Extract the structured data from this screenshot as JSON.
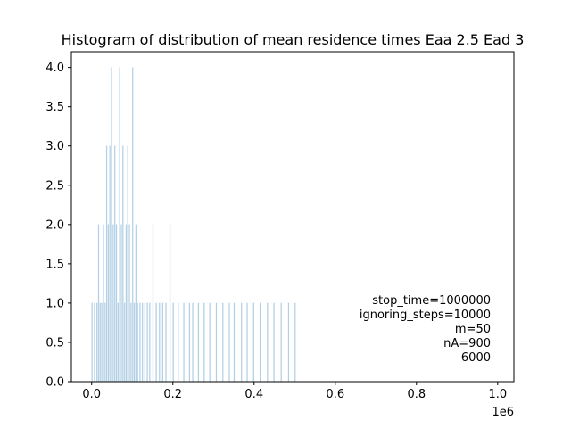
{
  "chart_data": {
    "type": "histogram",
    "title": "Histogram of distribution of mean residence times Eaa 2.5 Ead 3",
    "xlabel": "",
    "ylabel": "",
    "x_offset_label": "1e6",
    "xlim": [
      -50000,
      1040000
    ],
    "ylim": [
      0,
      4.2
    ],
    "x_ticks": [
      0,
      200000,
      400000,
      600000,
      800000,
      1000000
    ],
    "x_tick_labels": [
      "0.0",
      "0.2",
      "0.4",
      "0.6",
      "0.8",
      "1.0"
    ],
    "y_ticks": [
      0,
      0.5,
      1,
      1.5,
      2,
      2.5,
      3,
      3.5,
      4
    ],
    "y_tick_labels": [
      "0.0",
      "0.5",
      "1.0",
      "1.5",
      "2.0",
      "2.5",
      "3.0",
      "3.5",
      "4.0"
    ],
    "bar_color": "#1f77b4",
    "bin_width": 2000,
    "bins": [
      {
        "x": 0,
        "count": 1
      },
      {
        "x": 6000,
        "count": 1
      },
      {
        "x": 12000,
        "count": 1
      },
      {
        "x": 16000,
        "count": 2
      },
      {
        "x": 20000,
        "count": 1
      },
      {
        "x": 24000,
        "count": 1
      },
      {
        "x": 28000,
        "count": 2
      },
      {
        "x": 32000,
        "count": 1
      },
      {
        "x": 36000,
        "count": 3
      },
      {
        "x": 40000,
        "count": 2
      },
      {
        "x": 44000,
        "count": 3
      },
      {
        "x": 48000,
        "count": 4
      },
      {
        "x": 52000,
        "count": 2
      },
      {
        "x": 56000,
        "count": 3
      },
      {
        "x": 60000,
        "count": 2
      },
      {
        "x": 64000,
        "count": 1
      },
      {
        "x": 68000,
        "count": 4
      },
      {
        "x": 72000,
        "count": 2
      },
      {
        "x": 76000,
        "count": 3
      },
      {
        "x": 80000,
        "count": 1
      },
      {
        "x": 84000,
        "count": 2
      },
      {
        "x": 88000,
        "count": 3
      },
      {
        "x": 92000,
        "count": 2
      },
      {
        "x": 96000,
        "count": 1
      },
      {
        "x": 100000,
        "count": 4
      },
      {
        "x": 104000,
        "count": 1
      },
      {
        "x": 108000,
        "count": 2
      },
      {
        "x": 112000,
        "count": 1
      },
      {
        "x": 118000,
        "count": 1
      },
      {
        "x": 124000,
        "count": 1
      },
      {
        "x": 130000,
        "count": 1
      },
      {
        "x": 136000,
        "count": 1
      },
      {
        "x": 142000,
        "count": 1
      },
      {
        "x": 150000,
        "count": 2
      },
      {
        "x": 158000,
        "count": 1
      },
      {
        "x": 166000,
        "count": 1
      },
      {
        "x": 174000,
        "count": 1
      },
      {
        "x": 182000,
        "count": 1
      },
      {
        "x": 192000,
        "count": 2
      },
      {
        "x": 200000,
        "count": 1
      },
      {
        "x": 212000,
        "count": 1
      },
      {
        "x": 226000,
        "count": 1
      },
      {
        "x": 240000,
        "count": 1
      },
      {
        "x": 248000,
        "count": 1
      },
      {
        "x": 262000,
        "count": 1
      },
      {
        "x": 276000,
        "count": 1
      },
      {
        "x": 290000,
        "count": 1
      },
      {
        "x": 306000,
        "count": 1
      },
      {
        "x": 322000,
        "count": 1
      },
      {
        "x": 338000,
        "count": 1
      },
      {
        "x": 350000,
        "count": 1
      },
      {
        "x": 368000,
        "count": 1
      },
      {
        "x": 382000,
        "count": 1
      },
      {
        "x": 398000,
        "count": 1
      },
      {
        "x": 414000,
        "count": 1
      },
      {
        "x": 432000,
        "count": 1
      },
      {
        "x": 448000,
        "count": 1
      },
      {
        "x": 466000,
        "count": 1
      },
      {
        "x": 484000,
        "count": 1
      },
      {
        "x": 500000,
        "count": 1
      }
    ],
    "annotation_lines": [
      "stop_time=1000000",
      "ignoring_steps=10000",
      "m=50",
      "nA=900",
      "6000"
    ]
  }
}
